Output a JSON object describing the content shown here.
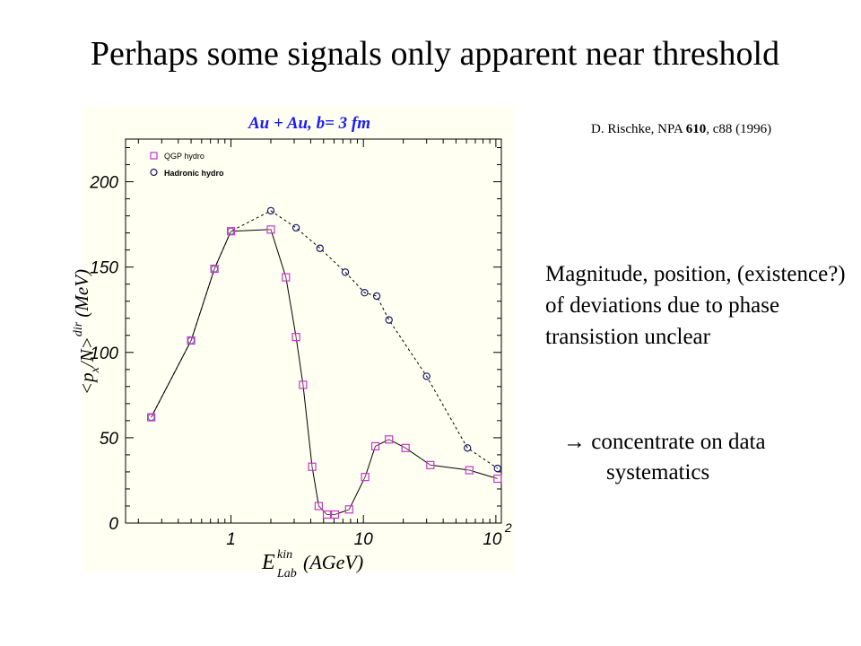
{
  "slide": {
    "title": "Perhaps some signals only apparent near threshold",
    "citation_prefix": "D. Rischke, NPA ",
    "citation_bold": "610",
    "citation_suffix": ", c88 (1996)",
    "body_text": "Magnitude, position, (existence?) of deviations due to phase transistion unclear",
    "bullet_arrow": "→",
    "bullet_line1": "concentrate on data",
    "bullet_line2": "systematics"
  },
  "colors": {
    "panel_background": "#fffff2",
    "qgp_marker": "#cc33cc",
    "title_blue": "#1a1aff"
  },
  "chart_data": {
    "type": "scatter",
    "title": "Au + Au, b= 3 fm",
    "xlabel_main": "E",
    "xlabel_sup": "kin",
    "xlabel_sub": "Lab",
    "xlabel_unit": "(AGeV)",
    "ylabel": "<p_x/N>^dir (MeV)",
    "x_scale": "log",
    "xlim": [
      0.16,
      110
    ],
    "ylim": [
      0,
      225
    ],
    "x_tick_labels": [
      "1",
      "10",
      "10",
      "2"
    ],
    "x_major_ticks": [
      1,
      10,
      100
    ],
    "y_ticks": [
      0,
      50,
      100,
      150,
      200
    ],
    "legend_position": "top-left",
    "series": [
      {
        "name": "QGP hydro",
        "marker": "square",
        "line": "solid",
        "x": [
          0.25,
          0.5,
          0.75,
          1.0,
          2.0,
          2.6,
          3.1,
          3.5,
          4.1,
          4.6,
          5.3,
          6.1,
          7.8,
          10.3,
          12.3,
          15.6,
          20.8,
          32,
          63,
          103
        ],
        "y": [
          62,
          107,
          149,
          171,
          172,
          144,
          109,
          81,
          33,
          10,
          5,
          5,
          8,
          27,
          45,
          49,
          44,
          34,
          31,
          26
        ]
      },
      {
        "name": "Hadronic hydro",
        "marker": "circle",
        "line": "dashed",
        "x": [
          0.25,
          0.5,
          0.75,
          1.0,
          2.0,
          3.1,
          4.7,
          7.3,
          10.2,
          12.6,
          15.6,
          30,
          61,
          103
        ],
        "y": [
          62,
          107,
          149,
          171,
          183,
          173,
          161,
          147,
          135,
          133,
          119,
          86,
          44,
          32
        ]
      }
    ]
  }
}
